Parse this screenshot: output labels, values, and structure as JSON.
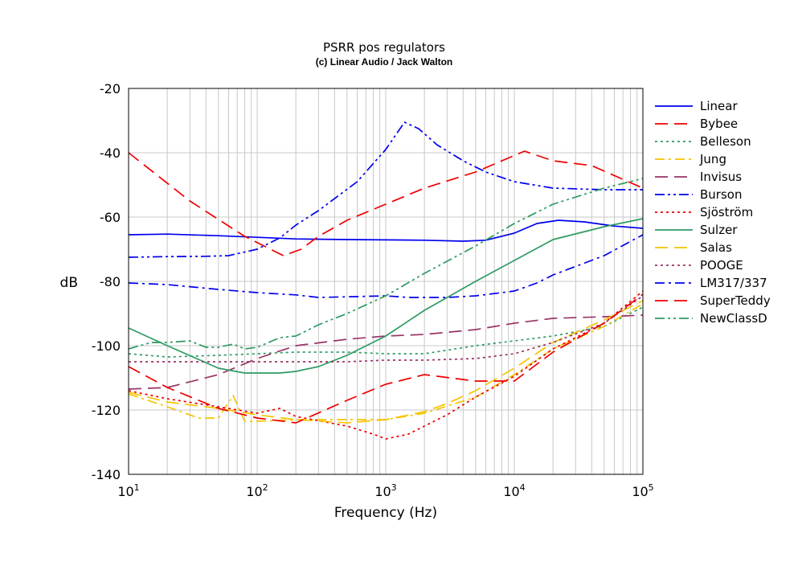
{
  "chart_data": {
    "type": "line",
    "title": "PSRR pos regulators",
    "subtitle": "(c) Linear Audio / Jack Walton",
    "xlabel": "Frequency (Hz)",
    "ylabel": "dB",
    "xscale": "log",
    "xlim": [
      10,
      100000
    ],
    "ylim": [
      -140,
      -20
    ],
    "xticks": [
      {
        "base": "10",
        "exp": "1"
      },
      {
        "base": "10",
        "exp": "2"
      },
      {
        "base": "10",
        "exp": "3"
      },
      {
        "base": "10",
        "exp": "4"
      },
      {
        "base": "10",
        "exp": "5"
      }
    ],
    "yticks": [
      "-140",
      "-120",
      "-100",
      "-80",
      "-60",
      "-40",
      "-20"
    ],
    "grid": true,
    "legend_position": "right",
    "series": [
      {
        "name": "Linear",
        "color": "#0000ee",
        "dash": "solid",
        "x": [
          10,
          20,
          50,
          100,
          200,
          500,
          1000,
          2000,
          4000,
          6000,
          10000,
          15000,
          22000,
          35000,
          60000,
          100000
        ],
        "y": [
          -65.5,
          -65.3,
          -65.8,
          -66.3,
          -66.8,
          -67.0,
          -67.1,
          -67.2,
          -67.5,
          -67.2,
          -65.0,
          -62.0,
          -61.0,
          -61.5,
          -62.8,
          -63.5
        ]
      },
      {
        "name": "Bybee",
        "color": "#ee0000",
        "dash": "longdash",
        "x": [
          10,
          30,
          80,
          160,
          220,
          300,
          500,
          1000,
          2000,
          5000,
          12000,
          20000,
          40000,
          100000
        ],
        "y": [
          -40,
          -55,
          -66,
          -72,
          -70,
          -66,
          -61,
          -56,
          -51,
          -46,
          -39.5,
          -42.5,
          -44,
          -51
        ]
      },
      {
        "name": "Belleson",
        "color": "#2e9b63",
        "dash": "dot",
        "x": [
          10,
          20,
          50,
          100,
          200,
          500,
          1000,
          2000,
          5000,
          10000,
          20000,
          50000,
          100000
        ],
        "y": [
          -102.5,
          -103.5,
          -103,
          -102.5,
          -102,
          -102,
          -102.5,
          -102.5,
          -100,
          -98.5,
          -97,
          -94,
          -88
        ]
      },
      {
        "name": "Jung",
        "color": "#f5c400",
        "dash": "dashdot",
        "x": [
          10,
          20,
          35,
          50,
          65,
          80,
          100,
          200,
          500,
          1000,
          2000,
          5000,
          10000,
          20000,
          50000,
          100000
        ],
        "y": [
          -115,
          -119,
          -122.5,
          -122.5,
          -115.5,
          -123.5,
          -123.5,
          -123,
          -123,
          -123,
          -121,
          -116,
          -109,
          -101,
          -94,
          -87
        ]
      },
      {
        "name": "Invisus",
        "color": "#993366",
        "dash": "longdash",
        "x": [
          10,
          20,
          50,
          100,
          200,
          500,
          1000,
          2000,
          5000,
          10000,
          20000,
          50000,
          100000
        ],
        "y": [
          -113.5,
          -113,
          -109,
          -104,
          -100,
          -98,
          -97,
          -96.5,
          -95,
          -93,
          -91.5,
          -91,
          -90.5
        ]
      },
      {
        "name": "Burson",
        "color": "#0000ee",
        "dash": "dashdotdot",
        "x": [
          10,
          20,
          40,
          60,
          100,
          150,
          200,
          300,
          600,
          1000,
          1400,
          1800,
          2500,
          4000,
          6000,
          10000,
          20000,
          50000,
          100000
        ],
        "y": [
          -72.5,
          -72.3,
          -72.2,
          -72,
          -70,
          -66.5,
          -62.5,
          -58,
          -49,
          -39,
          -30.5,
          -32.5,
          -37.5,
          -42.5,
          -46,
          -49,
          -51,
          -51.5,
          -51.5
        ]
      },
      {
        "name": "Sjöström",
        "color": "#ee0000",
        "dash": "dot",
        "x": [
          10,
          20,
          50,
          100,
          150,
          200,
          500,
          800,
          1000,
          1500,
          2000,
          3000,
          5000,
          10000,
          20000,
          50000,
          100000
        ],
        "y": [
          -114,
          -116.5,
          -119,
          -121,
          -119.5,
          -122,
          -125,
          -127.5,
          -129,
          -127.5,
          -125,
          -121.5,
          -116,
          -109.5,
          -101,
          -93,
          -83
        ]
      },
      {
        "name": "Sulzer",
        "color": "#2e9b63",
        "dash": "solid",
        "x": [
          10,
          20,
          50,
          80,
          100,
          150,
          200,
          300,
          500,
          1000,
          2000,
          5000,
          10000,
          20000,
          50000,
          100000
        ],
        "y": [
          -94.5,
          -100,
          -107,
          -108.5,
          -108.5,
          -108.5,
          -108,
          -106.5,
          -103,
          -97,
          -89,
          -80,
          -73.5,
          -67,
          -63,
          -60.5
        ]
      },
      {
        "name": "Salas",
        "color": "#f5c400",
        "dash": "longdash",
        "x": [
          10,
          20,
          50,
          100,
          200,
          500,
          1000,
          2000,
          3000,
          5000,
          10000,
          20000,
          50000,
          100000
        ],
        "y": [
          -114.5,
          -117.5,
          -119.5,
          -121.5,
          -123,
          -124,
          -123,
          -120.5,
          -118,
          -114,
          -107,
          -99,
          -92,
          -86
        ]
      },
      {
        "name": "POOGE",
        "color": "#993366",
        "dash": "dot",
        "x": [
          10,
          20,
          50,
          100,
          200,
          500,
          1000,
          2000,
          5000,
          10000,
          20000,
          50000,
          100000
        ],
        "y": [
          -105,
          -105,
          -105,
          -105,
          -105,
          -105,
          -104.5,
          -104.5,
          -104,
          -102.5,
          -99,
          -93,
          -84.5
        ]
      },
      {
        "name": "LM317/337",
        "color": "#0000ee",
        "dash": "dashdot",
        "x": [
          10,
          20,
          50,
          100,
          200,
          300,
          500,
          1000,
          1500,
          2000,
          3000,
          5000,
          8000,
          10000,
          15000,
          20000,
          50000,
          100000
        ],
        "y": [
          -80.5,
          -81,
          -82.5,
          -83.5,
          -84.2,
          -85,
          -84.8,
          -84.5,
          -85,
          -85,
          -85,
          -84.5,
          -83.5,
          -83,
          -80.5,
          -78,
          -72,
          -65.5
        ]
      },
      {
        "name": "SuperTeddy",
        "color": "#ee0000",
        "dash": "longdash",
        "x": [
          10,
          20,
          50,
          100,
          200,
          500,
          1000,
          2000,
          5000,
          10000,
          20000,
          50000,
          100000
        ],
        "y": [
          -106.5,
          -113,
          -119.5,
          -122.5,
          -124,
          -117,
          -112,
          -109,
          -111,
          -111,
          -102,
          -93,
          -84
        ]
      },
      {
        "name": "NewClassD",
        "color": "#2e9b63",
        "dash": "dashdotdot",
        "x": [
          10,
          15,
          20,
          30,
          40,
          50,
          65,
          80,
          100,
          150,
          200,
          300,
          500,
          1000,
          2000,
          5000,
          10000,
          20000,
          50000,
          100000
        ],
        "y": [
          -101,
          -99,
          -99,
          -98.5,
          -100.5,
          -100.5,
          -99.5,
          -101,
          -100.5,
          -97.5,
          -97,
          -93.5,
          -90,
          -84.5,
          -77.5,
          -69,
          -62,
          -56,
          -51,
          -48
        ]
      }
    ]
  }
}
